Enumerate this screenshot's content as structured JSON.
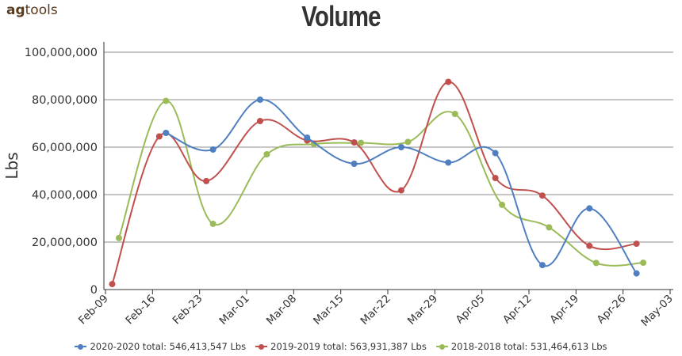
{
  "logo": {
    "ag": "ag",
    "tools": "tools"
  },
  "chart_data": {
    "type": "line",
    "title": "Volume",
    "ylabel": "Lbs",
    "xlabel": "",
    "ylim": [
      0,
      100000000
    ],
    "yticks": [
      0,
      20000000,
      40000000,
      60000000,
      80000000,
      100000000
    ],
    "ytick_labels": [
      "0",
      "20,000,000",
      "40,000,000",
      "60,000,000",
      "80,000,000",
      "100,000,000"
    ],
    "xlim": [
      "2020-02-09",
      "2020-05-03"
    ],
    "xticks": [
      "2020-02-09",
      "2020-02-16",
      "2020-02-23",
      "2020-03-01",
      "2020-03-08",
      "2020-03-15",
      "2020-03-22",
      "2020-03-29",
      "2020-04-05",
      "2020-04-12",
      "2020-04-19",
      "2020-04-26",
      "2020-05-03"
    ],
    "xtick_labels": [
      "Feb-09",
      "Feb-16",
      "Feb-23",
      "Mar-01",
      "Mar-08",
      "Mar-15",
      "Mar-22",
      "Mar-29",
      "Apr-05",
      "Apr-12",
      "Apr-19",
      "Apr-26",
      "May-03"
    ],
    "grid": true,
    "legend_position": "bottom",
    "series": [
      {
        "name": "2020-2020 total: 546,413,547 Lbs",
        "color": "#4f7fc0",
        "x": [
          "2020-02-18",
          "2020-02-25",
          "2020-03-03",
          "2020-03-10",
          "2020-03-17",
          "2020-03-24",
          "2020-03-31",
          "2020-04-07",
          "2020-04-14",
          "2020-04-21",
          "2020-04-28"
        ],
        "y": [
          66000000,
          59000000,
          80000000,
          64000000,
          53000000,
          60000000,
          53500000,
          57500000,
          10300000,
          34200000,
          6800000
        ]
      },
      {
        "name": "2019-2019 total: 563,931,387 Lbs",
        "color": "#c0504d",
        "x": [
          "2020-02-10",
          "2020-02-17",
          "2020-02-24",
          "2020-03-03",
          "2020-03-10",
          "2020-03-17",
          "2020-03-24",
          "2020-03-31",
          "2020-04-07",
          "2020-04-14",
          "2020-04-21",
          "2020-04-28"
        ],
        "y": [
          2300000,
          64500000,
          45700000,
          71000000,
          62800000,
          62000000,
          41800000,
          87500000,
          47000000,
          39600000,
          18400000,
          19300000
        ]
      },
      {
        "name": "2018-2018 total: 531,464,613 Lbs",
        "color": "#9bbb59",
        "x": [
          "2020-02-11",
          "2020-02-18",
          "2020-02-25",
          "2020-03-04",
          "2020-03-11",
          "2020-03-18",
          "2020-03-25",
          "2020-04-01",
          "2020-04-08",
          "2020-04-15",
          "2020-04-22",
          "2020-04-29"
        ],
        "y": [
          21700000,
          79500000,
          27700000,
          57000000,
          61300000,
          61800000,
          62200000,
          74000000,
          35700000,
          26200000,
          11200000,
          11300000
        ]
      }
    ]
  }
}
